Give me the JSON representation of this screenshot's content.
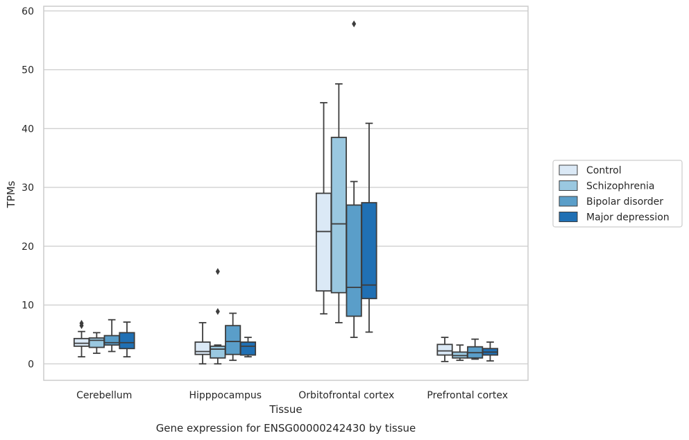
{
  "chart_data": {
    "type": "box",
    "caption": "Gene expression for ENSG00000242430 by tissue",
    "xlabel": "Tissue",
    "ylabel": "TPMs",
    "ylim": [
      -2.8,
      60.8
    ],
    "yticks": [
      0,
      10,
      20,
      30,
      40,
      50,
      60
    ],
    "grid": "horizontal",
    "legend_position": "right",
    "categories": [
      "Cerebellum",
      "Hipppocampus",
      "Orbitofrontal cortex",
      "Prefrontal cortex"
    ],
    "series": [
      {
        "name": "Control",
        "color": "#dbe9f6",
        "boxes": [
          {
            "whislo": 1.2,
            "q1": 3.0,
            "median": 3.5,
            "q3": 4.3,
            "whishi": 5.5,
            "fliers": [
              6.5,
              6.9
            ]
          },
          {
            "whislo": 0.0,
            "q1": 1.6,
            "median": 2.1,
            "q3": 3.7,
            "whishi": 7.0,
            "fliers": []
          },
          {
            "whislo": 8.5,
            "q1": 12.4,
            "median": 22.5,
            "q3": 29.0,
            "whishi": 44.4,
            "fliers": []
          },
          {
            "whislo": 0.4,
            "q1": 1.5,
            "median": 2.2,
            "q3": 3.3,
            "whishi": 4.5,
            "fliers": []
          }
        ]
      },
      {
        "name": "Schizophrenia",
        "color": "#9ac8e0",
        "boxes": [
          {
            "whislo": 1.8,
            "q1": 2.8,
            "median": 4.0,
            "q3": 4.4,
            "whishi": 5.3,
            "fliers": []
          },
          {
            "whislo": 0.0,
            "q1": 1.0,
            "median": 2.5,
            "q3": 3.0,
            "whishi": 3.2,
            "fliers": [
              8.9,
              15.7
            ]
          },
          {
            "whislo": 7.0,
            "q1": 12.1,
            "median": 23.8,
            "q3": 38.5,
            "whishi": 47.6,
            "fliers": []
          },
          {
            "whislo": 0.6,
            "q1": 1.0,
            "median": 1.4,
            "q3": 2.0,
            "whishi": 3.2,
            "fliers": []
          }
        ]
      },
      {
        "name": "Bipolar disorder",
        "color": "#5a9ec9",
        "boxes": [
          {
            "whislo": 2.1,
            "q1": 3.2,
            "median": 3.6,
            "q3": 4.8,
            "whishi": 7.5,
            "fliers": []
          },
          {
            "whislo": 0.6,
            "q1": 1.6,
            "median": 3.8,
            "q3": 6.5,
            "whishi": 8.6,
            "fliers": []
          },
          {
            "whislo": 4.5,
            "q1": 8.1,
            "median": 13.0,
            "q3": 27.0,
            "whishi": 31.0,
            "fliers": [
              57.8
            ]
          },
          {
            "whislo": 0.8,
            "q1": 1.0,
            "median": 1.9,
            "q3": 2.9,
            "whishi": 4.2,
            "fliers": []
          }
        ]
      },
      {
        "name": "Major depression",
        "color": "#2070b4",
        "boxes": [
          {
            "whislo": 1.2,
            "q1": 2.6,
            "median": 3.6,
            "q3": 5.3,
            "whishi": 7.1,
            "fliers": []
          },
          {
            "whislo": 1.2,
            "q1": 1.5,
            "median": 3.0,
            "q3": 3.7,
            "whishi": 4.5,
            "fliers": []
          },
          {
            "whislo": 5.4,
            "q1": 11.1,
            "median": 13.4,
            "q3": 27.4,
            "whishi": 40.9,
            "fliers": []
          },
          {
            "whislo": 0.5,
            "q1": 1.5,
            "median": 2.0,
            "q3": 2.6,
            "whishi": 3.7,
            "fliers": []
          }
        ]
      }
    ]
  }
}
